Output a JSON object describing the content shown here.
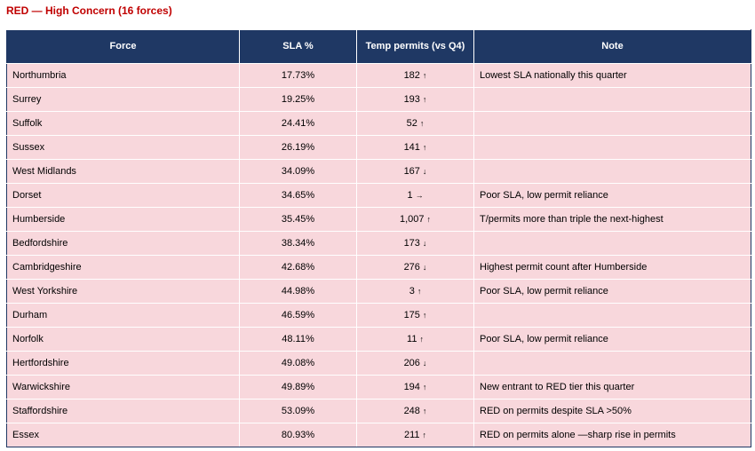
{
  "heading": "RED — High Concern (16 forces)",
  "columns": {
    "force": "Force",
    "sla": "SLA %",
    "permits": "Temp permits (vs Q4)",
    "note": "Note"
  },
  "rows": [
    {
      "force": "Northumbria",
      "sla": "17.73%",
      "permits": "182",
      "trend": "↑",
      "note": "Lowest SLA nationally this quarter"
    },
    {
      "force": "Surrey",
      "sla": "19.25%",
      "permits": "193",
      "trend": "↑",
      "note": ""
    },
    {
      "force": "Suffolk",
      "sla": "24.41%",
      "permits": "52",
      "trend": "↑",
      "note": ""
    },
    {
      "force": "Sussex",
      "sla": "26.19%",
      "permits": "141",
      "trend": "↑",
      "note": ""
    },
    {
      "force": "West Midlands",
      "sla": "34.09%",
      "permits": "167",
      "trend": "↓",
      "note": ""
    },
    {
      "force": "Dorset",
      "sla": "34.65%",
      "permits": "1",
      "trend": "→",
      "note": "Poor SLA, low permit reliance"
    },
    {
      "force": "Humberside",
      "sla": "35.45%",
      "permits": "1,007",
      "trend": "↑",
      "note": "T/permits more than triple the next-highest"
    },
    {
      "force": "Bedfordshire",
      "sla": "38.34%",
      "permits": "173",
      "trend": "↓",
      "note": ""
    },
    {
      "force": "Cambridgeshire",
      "sla": "42.68%",
      "permits": "276",
      "trend": "↓",
      "note": "Highest permit count after Humberside"
    },
    {
      "force": "West Yorkshire",
      "sla": "44.98%",
      "permits": "3",
      "trend": "↑",
      "note": "Poor SLA, low permit reliance"
    },
    {
      "force": "Durham",
      "sla": "46.59%",
      "permits": "175",
      "trend": "↑",
      "note": ""
    },
    {
      "force": "Norfolk",
      "sla": "48.11%",
      "permits": "11",
      "trend": "↑",
      "note": "Poor SLA, low permit reliance"
    },
    {
      "force": "Hertfordshire",
      "sla": "49.08%",
      "permits": "206",
      "trend": "↓",
      "note": ""
    },
    {
      "force": "Warwickshire",
      "sla": "49.89%",
      "permits": "194",
      "trend": "↑",
      "note": "New entrant to RED tier this quarter"
    },
    {
      "force": "Staffordshire",
      "sla": "53.09%",
      "permits": "248",
      "trend": "↑",
      "note": "RED on permits despite SLA >50%"
    },
    {
      "force": "Essex",
      "sla": "80.93%",
      "permits": "211",
      "trend": "↑",
      "note": "RED on permits alone —sharp rise in permits"
    }
  ],
  "colors": {
    "heading": "#c00000",
    "header_bg": "#1f3864",
    "row_bg": "#f8d7dc"
  }
}
